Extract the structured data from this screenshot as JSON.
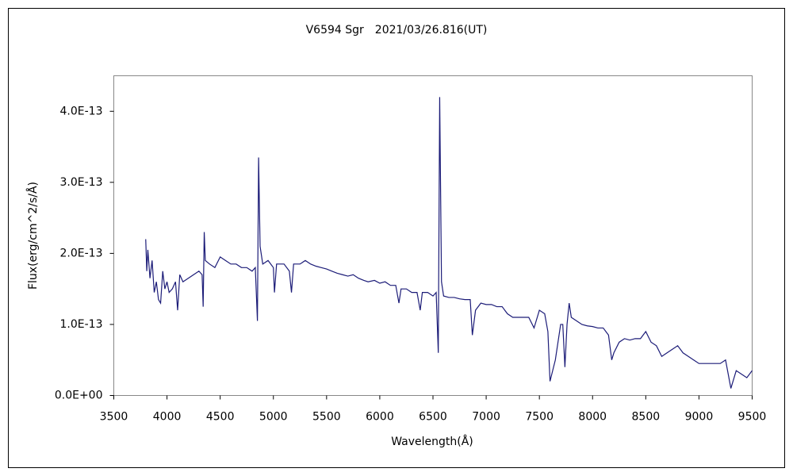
{
  "chart_data": {
    "type": "line",
    "title": "V6594 Sgr　2021/03/26.816(UT)",
    "xlabel": "Wavelength(Å)",
    "ylabel": "Flux(erg/cm^2/s/Å)",
    "xlim": [
      3500,
      9500
    ],
    "xticks": [
      3500,
      4000,
      4500,
      5000,
      5500,
      6000,
      6500,
      7000,
      7500,
      8000,
      8500,
      9000,
      9500
    ],
    "ylim": [
      0,
      4.5e-13
    ],
    "yticks": [
      {
        "value": 0,
        "label": "0.0E+00"
      },
      {
        "value": 1e-13,
        "label": "1.0E-13"
      },
      {
        "value": 2e-13,
        "label": "2.0E-13"
      },
      {
        "value": 3e-13,
        "label": "3.0E-13"
      },
      {
        "value": 4e-13,
        "label": "4.0E-13"
      }
    ],
    "grid": false,
    "x": [
      3800,
      3810,
      3820,
      3840,
      3860,
      3880,
      3900,
      3920,
      3940,
      3960,
      3980,
      4000,
      4020,
      4050,
      4080,
      4100,
      4120,
      4150,
      4200,
      4250,
      4300,
      4330,
      4340,
      4350,
      4360,
      4400,
      4450,
      4500,
      4550,
      4600,
      4650,
      4700,
      4750,
      4800,
      4830,
      4850,
      4861,
      4875,
      4900,
      4950,
      5000,
      5010,
      5030,
      5100,
      5150,
      5170,
      5190,
      5250,
      5300,
      5350,
      5400,
      5450,
      5500,
      5550,
      5600,
      5650,
      5700,
      5750,
      5800,
      5850,
      5890,
      5950,
      6000,
      6050,
      6100,
      6150,
      6180,
      6200,
      6250,
      6300,
      6350,
      6380,
      6400,
      6450,
      6500,
      6530,
      6550,
      6563,
      6580,
      6600,
      6650,
      6700,
      6750,
      6800,
      6850,
      6870,
      6900,
      6950,
      7000,
      7050,
      7100,
      7150,
      7200,
      7250,
      7300,
      7350,
      7400,
      7450,
      7500,
      7550,
      7580,
      7600,
      7650,
      7700,
      7720,
      7740,
      7760,
      7780,
      7800,
      7850,
      7900,
      7950,
      8000,
      8050,
      8100,
      8150,
      8180,
      8200,
      8250,
      8300,
      8350,
      8400,
      8450,
      8500,
      8550,
      8600,
      8650,
      8700,
      8750,
      8800,
      8850,
      8900,
      8950,
      9000,
      9050,
      9100,
      9150,
      9200,
      9250,
      9300,
      9350,
      9400,
      9450,
      9500
    ],
    "series": [
      {
        "color": "#1c1c78",
        "values": [
          2.2e-13,
          1.75e-13,
          2.05e-13,
          1.65e-13,
          1.9e-13,
          1.45e-13,
          1.6e-13,
          1.35e-13,
          1.3e-13,
          1.75e-13,
          1.5e-13,
          1.6e-13,
          1.45e-13,
          1.5e-13,
          1.6e-13,
          1.2e-13,
          1.7e-13,
          1.6e-13,
          1.65e-13,
          1.7e-13,
          1.75e-13,
          1.7e-13,
          1.25e-13,
          2.3e-13,
          1.9e-13,
          1.85e-13,
          1.8e-13,
          1.95e-13,
          1.9e-13,
          1.85e-13,
          1.85e-13,
          1.8e-13,
          1.8e-13,
          1.75e-13,
          1.8e-13,
          1.05e-13,
          3.35e-13,
          2.1e-13,
          1.85e-13,
          1.9e-13,
          1.8e-13,
          1.45e-13,
          1.85e-13,
          1.85e-13,
          1.75e-13,
          1.45e-13,
          1.85e-13,
          1.85e-13,
          1.9e-13,
          1.85e-13,
          1.82e-13,
          1.8e-13,
          1.78e-13,
          1.75e-13,
          1.72e-13,
          1.7e-13,
          1.68e-13,
          1.7e-13,
          1.65e-13,
          1.62e-13,
          1.6e-13,
          1.62e-13,
          1.58e-13,
          1.6e-13,
          1.55e-13,
          1.55e-13,
          1.3e-13,
          1.5e-13,
          1.5e-13,
          1.45e-13,
          1.45e-13,
          1.2e-13,
          1.45e-13,
          1.45e-13,
          1.4e-13,
          1.45e-13,
          6e-14,
          4.2e-13,
          1.6e-13,
          1.4e-13,
          1.38e-13,
          1.38e-13,
          1.36e-13,
          1.35e-13,
          1.35e-13,
          8.5e-14,
          1.2e-13,
          1.3e-13,
          1.28e-13,
          1.28e-13,
          1.25e-13,
          1.25e-13,
          1.15e-13,
          1.1e-13,
          1.1e-13,
          1.1e-13,
          1.1e-13,
          9.5e-14,
          1.2e-13,
          1.15e-13,
          9e-14,
          2e-14,
          5e-14,
          1e-13,
          1e-13,
          4e-14,
          1e-13,
          1.3e-13,
          1.1e-13,
          1.05e-13,
          1e-13,
          9.8e-14,
          9.7e-14,
          9.5e-14,
          9.5e-14,
          8.5e-14,
          5e-14,
          6e-14,
          7.5e-14,
          8e-14,
          7.8e-14,
          8e-14,
          8e-14,
          9e-14,
          7.5e-14,
          7e-14,
          5.5e-14,
          6e-14,
          6.5e-14,
          7e-14,
          6e-14,
          5.5e-14,
          5e-14,
          4.5e-14,
          4.5e-14,
          4.5e-14,
          4.5e-14,
          4.5e-14,
          5e-14,
          1e-14,
          3.5e-14,
          3e-14,
          2.5e-14,
          3.5e-14
        ]
      }
    ]
  }
}
